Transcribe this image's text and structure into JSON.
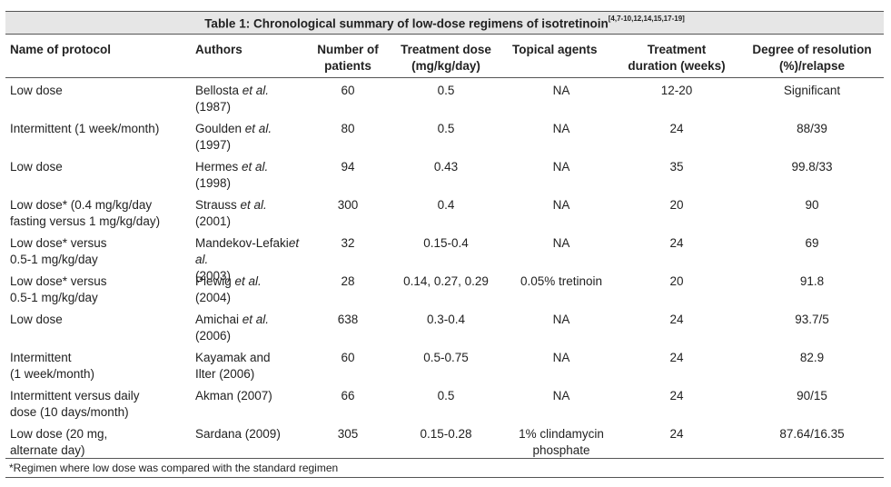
{
  "table": {
    "title": "Table 1: Chronological summary of low-dose regimens of isotretinoin",
    "title_refs": "[4,7-10,12,14,15,17-19]",
    "headers": {
      "protocol": "Name of protocol",
      "authors": "Authors",
      "patients_1": "Number of",
      "patients_2": "patients",
      "dose_1": "Treatment dose",
      "dose_2": "(mg/kg/day)",
      "topical": "Topical agents",
      "duration_1": "Treatment",
      "duration_2": "duration (weeks)",
      "resolution_1": "Degree of resolution",
      "resolution_2": "(%)/relapse"
    },
    "rows": [
      {
        "protocol_1": "Low dose",
        "protocol_2": "",
        "author_name": "Bellosta ",
        "author_etal": "et al.",
        "author_year": "(1987)",
        "patients": "60",
        "dose": "0.5",
        "topical_1": "NA",
        "topical_2": "",
        "duration": "12-20",
        "resolution": "Significant"
      },
      {
        "protocol_1": "Intermittent (1 week/month)",
        "protocol_2": "",
        "author_name": "Goulden ",
        "author_etal": "et al.",
        "author_year": "(1997)",
        "patients": "80",
        "dose": "0.5",
        "topical_1": "NA",
        "topical_2": "",
        "duration": "24",
        "resolution": "88/39"
      },
      {
        "protocol_1": "Low dose",
        "protocol_2": "",
        "author_name": "Hermes ",
        "author_etal": "et al.",
        "author_year": "(1998)",
        "patients": "94",
        "dose": "0.43",
        "topical_1": "NA",
        "topical_2": "",
        "duration": "35",
        "resolution": "99.8/33"
      },
      {
        "protocol_1": "Low dose* (0.4 mg/kg/day",
        "protocol_2": "fasting versus 1 mg/kg/day)",
        "author_name": "Strauss ",
        "author_etal": "et al.",
        "author_year": "(2001)",
        "patients": "300",
        "dose": "0.4",
        "topical_1": "NA",
        "topical_2": "",
        "duration": "20",
        "resolution": "90"
      },
      {
        "protocol_1": "Low dose* versus",
        "protocol_2": "0.5-1 mg/kg/day",
        "author_name": "Mandekov-Lefaki",
        "author_etal": "et al.",
        "author_year": "(2003)",
        "patients": "32",
        "dose": "0.15-0.4",
        "topical_1": "NA",
        "topical_2": "",
        "duration": "24",
        "resolution": "69"
      },
      {
        "protocol_1": "Low dose* versus",
        "protocol_2": "0.5-1 mg/kg/day",
        "author_name": "Plewig ",
        "author_etal": "et al.",
        "author_year": "(2004)",
        "patients": "28",
        "dose": "0.14, 0.27, 0.29",
        "topical_1": "0.05% tretinoin",
        "topical_2": "",
        "duration": "20",
        "resolution": "91.8"
      },
      {
        "protocol_1": "Low dose",
        "protocol_2": "",
        "author_name": "Amichai ",
        "author_etal": "et al.",
        "author_year": "(2006)",
        "patients": "638",
        "dose": "0.3-0.4",
        "topical_1": "NA",
        "topical_2": "",
        "duration": "24",
        "resolution": "93.7/5"
      },
      {
        "protocol_1": "Intermittent",
        "protocol_2": "(1 week/month)",
        "author_name": "Kayamak and",
        "author_etal": "",
        "author_year": "Ilter (2006)",
        "patients": "60",
        "dose": "0.5-0.75",
        "topical_1": "NA",
        "topical_2": "",
        "duration": "24",
        "resolution": "82.9"
      },
      {
        "protocol_1": "Intermittent versus daily",
        "protocol_2": "dose (10 days/month)",
        "author_name": "Akman (2007)",
        "author_etal": "",
        "author_year": "",
        "patients": "66",
        "dose": "0.5",
        "topical_1": "NA",
        "topical_2": "",
        "duration": "24",
        "resolution": "90/15"
      },
      {
        "protocol_1": "Low dose (20 mg,",
        "protocol_2": "alternate day)",
        "author_name": "Sardana (2009)",
        "author_etal": "",
        "author_year": "",
        "patients": "305",
        "dose": "0.15-0.28",
        "topical_1": "1% clindamycin",
        "topical_2": "phosphate",
        "duration": "24",
        "resolution": "87.64/16.35"
      }
    ],
    "footnote": "*Regimen where low dose was compared with the standard regimen"
  }
}
